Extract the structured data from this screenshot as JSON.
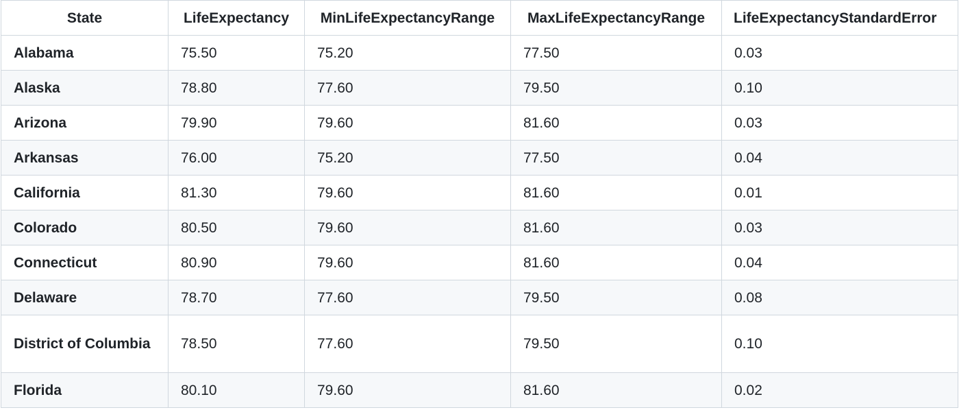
{
  "table": {
    "headers": [
      "State",
      "LifeExpectancy",
      "MinLifeExpectancyRange",
      "MaxLifeExpectancyRange",
      "LifeExpectancyStandardError"
    ],
    "rows": [
      [
        "Alabama",
        "75.50",
        "75.20",
        "77.50",
        "0.03"
      ],
      [
        "Alaska",
        "78.80",
        "77.60",
        "79.50",
        "0.10"
      ],
      [
        "Arizona",
        "79.90",
        "79.60",
        "81.60",
        "0.03"
      ],
      [
        "Arkansas",
        "76.00",
        "75.20",
        "77.50",
        "0.04"
      ],
      [
        "California",
        "81.30",
        "79.60",
        "81.60",
        "0.01"
      ],
      [
        "Colorado",
        "80.50",
        "79.60",
        "81.60",
        "0.03"
      ],
      [
        "Connecticut",
        "80.90",
        "79.60",
        "81.60",
        "0.04"
      ],
      [
        "Delaware",
        "78.70",
        "77.60",
        "79.50",
        "0.08"
      ],
      [
        "District of Columbia",
        "78.50",
        "77.60",
        "79.50",
        "0.10"
      ],
      [
        "Florida",
        "80.10",
        "79.60",
        "81.60",
        "0.02"
      ]
    ]
  }
}
